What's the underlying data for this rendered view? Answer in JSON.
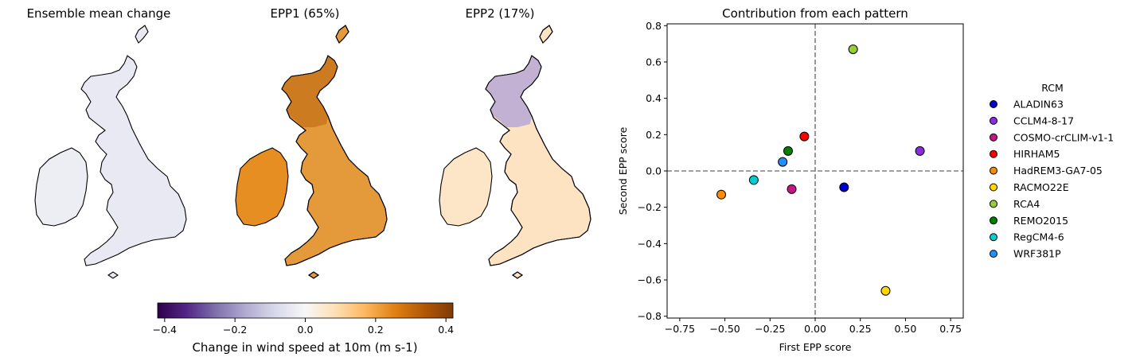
{
  "maps": [
    {
      "title": "Ensemble mean change",
      "pattern": "mean"
    },
    {
      "title": "EPP1 (65%)",
      "pattern": "epp1"
    },
    {
      "title": "EPP2 (17%)",
      "pattern": "epp2"
    }
  ],
  "colorbar": {
    "label": "Change in wind speed at 10m (m s-1)",
    "ticks": [
      "−0.4",
      "−0.2",
      "0.0",
      "0.2",
      "0.4"
    ],
    "tick_values": [
      -0.4,
      -0.2,
      0.0,
      0.2,
      0.4
    ],
    "range": [
      -0.42,
      0.42
    ],
    "colormap": "PuOr_r",
    "stops": [
      "#2d004b",
      "#542788",
      "#8073ac",
      "#b2abd2",
      "#d8daeb",
      "#f7f7f7",
      "#fee0b6",
      "#fdb863",
      "#e08214",
      "#b35806",
      "#7f3b08"
    ]
  },
  "chart_data": {
    "type": "scatter",
    "title": "Contribution from each pattern",
    "xlabel": "First EPP score",
    "ylabel": "Second EPP score",
    "xlim": [
      -0.82,
      0.82
    ],
    "ylim": [
      -0.81,
      0.81
    ],
    "xticks": [
      -0.75,
      -0.5,
      -0.25,
      0.0,
      0.25,
      0.5,
      0.75
    ],
    "xtick_labels": [
      "−0.75",
      "−0.50",
      "−0.25",
      "0.00",
      "0.25",
      "0.50",
      "0.75"
    ],
    "yticks": [
      -0.8,
      -0.6,
      -0.4,
      -0.2,
      0.0,
      0.2,
      0.4,
      0.6,
      0.8
    ],
    "ytick_labels": [
      "−0.8",
      "−0.6",
      "−0.4",
      "−0.2",
      "0.0",
      "0.2",
      "0.4",
      "0.6",
      "0.8"
    ],
    "reference_lines": {
      "x": 0,
      "y": 0,
      "style": "dashed",
      "color": "#808080"
    },
    "legend_title": "RCM",
    "legend_position": "right",
    "grid": false,
    "series": [
      {
        "name": "ALADIN63",
        "x": 0.16,
        "y": -0.09,
        "color": "#0000cd"
      },
      {
        "name": "CCLM4-8-17",
        "x": 0.58,
        "y": 0.11,
        "color": "#8a2be2"
      },
      {
        "name": "COSMO-crCLIM-v1-1",
        "x": -0.13,
        "y": -0.1,
        "color": "#c71585"
      },
      {
        "name": "HIRHAM5",
        "x": -0.06,
        "y": 0.19,
        "color": "#ff0000"
      },
      {
        "name": "HadREM3-GA7-05",
        "x": -0.52,
        "y": -0.13,
        "color": "#ff8c00"
      },
      {
        "name": "RACMO22E",
        "x": 0.39,
        "y": -0.66,
        "color": "#ffd700"
      },
      {
        "name": "RCA4",
        "x": 0.21,
        "y": 0.67,
        "color": "#9acd32"
      },
      {
        "name": "REMO2015",
        "x": -0.15,
        "y": 0.11,
        "color": "#008000"
      },
      {
        "name": "RegCM4-6",
        "x": -0.34,
        "y": -0.05,
        "color": "#00ced1"
      },
      {
        "name": "WRF381P",
        "x": -0.18,
        "y": 0.05,
        "color": "#1e90ff"
      }
    ]
  }
}
